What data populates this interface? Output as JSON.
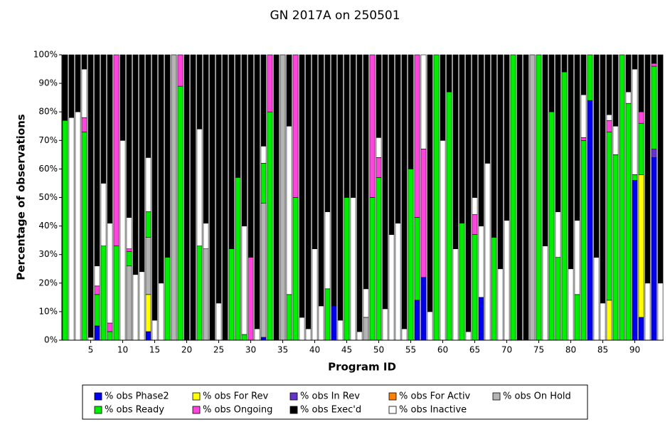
{
  "chart_data": {
    "type": "stacked_bar",
    "title": "GN 2017A on 250501",
    "x_label": "Program ID",
    "y_label": "Percentage of observations",
    "categories": [
      null,
      null,
      null,
      null,
      5,
      null,
      null,
      null,
      null,
      10,
      null,
      null,
      null,
      null,
      15,
      null,
      null,
      null,
      null,
      20,
      null,
      null,
      null,
      null,
      25,
      null,
      null,
      null,
      null,
      30,
      null,
      null,
      null,
      null,
      35,
      null,
      null,
      null,
      null,
      40,
      null,
      null,
      null,
      null,
      45,
      null,
      null,
      null,
      null,
      50,
      null,
      null,
      null,
      null,
      55,
      null,
      null,
      null,
      null,
      60,
      null,
      null,
      null,
      null,
      65,
      null,
      null,
      null,
      null,
      70,
      null,
      null,
      null,
      null,
      75,
      null,
      null,
      null,
      null,
      80,
      null,
      null,
      null,
      null,
      85,
      null,
      null,
      null,
      null,
      90,
      null,
      null,
      null,
      null
    ],
    "ylim": [
      0,
      100
    ],
    "yticks": [
      {
        "value": 0,
        "label": "0%"
      },
      {
        "value": 10,
        "label": "10%"
      },
      {
        "value": 20,
        "label": "20%"
      },
      {
        "value": 30,
        "label": "30%"
      },
      {
        "value": 40,
        "label": "40%"
      },
      {
        "value": 50,
        "label": "50%"
      },
      {
        "value": 60,
        "label": "60%"
      },
      {
        "value": 70,
        "label": "70%"
      },
      {
        "value": 80,
        "label": "80%"
      },
      {
        "value": 90,
        "label": "90%"
      },
      {
        "value": 100,
        "label": "100%"
      }
    ],
    "grid": false,
    "legend": "bottom",
    "series": [
      {
        "name": "% obs Phase2",
        "color": "#0000ee",
        "values": [
          0,
          0,
          0,
          0,
          0,
          5,
          0,
          0,
          0,
          0,
          0,
          0,
          0,
          3,
          0,
          0,
          0,
          0,
          0,
          0,
          0,
          0,
          0,
          0,
          0,
          0,
          0,
          0,
          0,
          0,
          0,
          1,
          0,
          0,
          0,
          0,
          0,
          0,
          0,
          0,
          0,
          0,
          12,
          0,
          0,
          0,
          0,
          0,
          0,
          0,
          0,
          0,
          0,
          0,
          0,
          14,
          22,
          0,
          0,
          0,
          0,
          0,
          0,
          0,
          0,
          15,
          0,
          0,
          0,
          0,
          0,
          0,
          0,
          0,
          0,
          0,
          0,
          0,
          0,
          0,
          0,
          0,
          84,
          0,
          0,
          0,
          0,
          0,
          0,
          56,
          8,
          0,
          64,
          0
        ]
      },
      {
        "name": "% obs For Rev",
        "color": "#ffff00",
        "values": [
          0,
          0,
          0,
          0,
          0,
          0,
          0,
          0,
          0,
          0,
          0,
          0,
          0,
          13,
          0,
          0,
          0,
          0,
          0,
          0,
          0,
          0,
          0,
          0,
          0,
          0,
          0,
          0,
          0,
          0,
          0,
          0,
          0,
          0,
          0,
          0,
          0,
          0,
          0,
          0,
          0,
          0,
          0,
          0,
          0,
          0,
          0,
          0,
          0,
          0,
          0,
          0,
          0,
          0,
          0,
          0,
          0,
          0,
          0,
          0,
          0,
          0,
          0,
          0,
          0,
          0,
          0,
          0,
          0,
          0,
          0,
          0,
          0,
          0,
          0,
          0,
          0,
          0,
          0,
          0,
          0,
          0,
          0,
          0,
          0,
          14,
          0,
          0,
          0,
          0,
          50,
          0,
          0,
          0
        ]
      },
      {
        "name": "% obs In Rev",
        "color": "#6633cc",
        "values": [
          0,
          0,
          0,
          0,
          0,
          0,
          0,
          0,
          0,
          0,
          0,
          0,
          0,
          0,
          0,
          0,
          0,
          0,
          0,
          0,
          0,
          0,
          0,
          0,
          0,
          0,
          0,
          0,
          0,
          0,
          0,
          0,
          0,
          0,
          0,
          0,
          0,
          0,
          0,
          0,
          0,
          0,
          0,
          0,
          0,
          0,
          0,
          0,
          0,
          0,
          0,
          0,
          0,
          0,
          0,
          0,
          0,
          0,
          0,
          0,
          0,
          0,
          0,
          0,
          0,
          0,
          0,
          0,
          0,
          0,
          0,
          0,
          0,
          0,
          0,
          0,
          0,
          0,
          0,
          0,
          0,
          0,
          0,
          0,
          0,
          0,
          0,
          0,
          0,
          0,
          0,
          0,
          3,
          0
        ]
      },
      {
        "name": "% obs For Activ",
        "color": "#ff7f00",
        "values": [
          0,
          0,
          0,
          0,
          0,
          0,
          0,
          0,
          0,
          0,
          0,
          0,
          0,
          0,
          0,
          0,
          0,
          0,
          0,
          0,
          0,
          0,
          0,
          0,
          0,
          0,
          0,
          0,
          0,
          0,
          0,
          0,
          0,
          0,
          0,
          0,
          0,
          0,
          0,
          0,
          0,
          0,
          0,
          0,
          0,
          0,
          0,
          0,
          0,
          0,
          0,
          0,
          0,
          0,
          0,
          0,
          0,
          0,
          0,
          0,
          0,
          0,
          0,
          0,
          0,
          0,
          0,
          0,
          0,
          0,
          0,
          0,
          0,
          0,
          0,
          0,
          0,
          0,
          0,
          0,
          0,
          0,
          0,
          0,
          0,
          0,
          0,
          0,
          0,
          0,
          0,
          0,
          0,
          0
        ]
      },
      {
        "name": "% obs On Hold",
        "color": "#b4b4b4",
        "values": [
          0,
          0,
          0,
          0,
          0,
          0,
          0,
          0,
          0,
          0,
          26,
          0,
          0,
          20,
          0,
          0,
          0,
          100,
          0,
          0,
          0,
          0,
          32,
          0,
          0,
          0,
          0,
          0,
          0,
          0,
          0,
          47,
          0,
          0,
          100,
          0,
          0,
          0,
          0,
          0,
          0,
          0,
          0,
          0,
          0,
          0,
          0,
          8,
          0,
          0,
          0,
          0,
          0,
          0,
          0,
          0,
          0,
          0,
          0,
          0,
          0,
          0,
          0,
          0,
          0,
          0,
          0,
          0,
          0,
          0,
          0,
          0,
          0,
          100,
          0,
          0,
          0,
          0,
          0,
          0,
          0,
          0,
          0,
          0,
          0,
          0,
          0,
          0,
          0,
          0,
          0,
          0,
          0,
          0
        ]
      },
      {
        "name": "% obs Ready",
        "color": "#00ee00",
        "values": [
          77,
          0,
          0,
          73,
          0,
          11,
          33,
          3,
          33,
          0,
          5,
          0,
          0,
          9,
          0,
          0,
          29,
          0,
          89,
          0,
          0,
          33,
          0,
          0,
          0,
          0,
          32,
          57,
          2,
          0,
          0,
          14,
          80,
          0,
          0,
          16,
          50,
          0,
          0,
          0,
          0,
          18,
          0,
          0,
          50,
          0,
          0,
          0,
          50,
          57,
          0,
          0,
          0,
          0,
          60,
          29,
          0,
          0,
          100,
          0,
          87,
          0,
          41,
          0,
          37,
          0,
          0,
          36,
          0,
          0,
          100,
          0,
          0,
          0,
          100,
          0,
          80,
          29,
          94,
          0,
          16,
          70,
          16,
          0,
          0,
          59,
          65,
          100,
          83,
          2,
          18,
          0,
          29,
          0
        ]
      },
      {
        "name": "% obs Ongoing",
        "color": "#ff44dd",
        "values": [
          0,
          0,
          0,
          5,
          0,
          3,
          0,
          3,
          67,
          0,
          1,
          0,
          0,
          0,
          0,
          0,
          0,
          0,
          11,
          0,
          0,
          0,
          0,
          0,
          0,
          0,
          0,
          0,
          0,
          29,
          0,
          0,
          20,
          0,
          0,
          0,
          50,
          0,
          0,
          0,
          0,
          0,
          0,
          0,
          0,
          0,
          0,
          0,
          50,
          7,
          0,
          0,
          0,
          0,
          0,
          57,
          45,
          0,
          0,
          0,
          0,
          0,
          0,
          0,
          7,
          0,
          0,
          0,
          0,
          0,
          0,
          0,
          0,
          0,
          0,
          0,
          0,
          0,
          0,
          0,
          0,
          1,
          0,
          0,
          0,
          4,
          0,
          0,
          0,
          0,
          4,
          0,
          1,
          0
        ]
      },
      {
        "name": "% obs Exec'd",
        "color": "#000000",
        "values": [
          23,
          22,
          20,
          5,
          99,
          74,
          45,
          59,
          0,
          30,
          57,
          77,
          76,
          36,
          93,
          80,
          71,
          0,
          0,
          100,
          100,
          26,
          59,
          100,
          87,
          100,
          68,
          43,
          60,
          71,
          96,
          32,
          0,
          100,
          0,
          25,
          0,
          92,
          96,
          68,
          88,
          55,
          88,
          93,
          50,
          50,
          97,
          82,
          0,
          29,
          89,
          63,
          59,
          96,
          40,
          0,
          0,
          90,
          0,
          30,
          13,
          68,
          59,
          97,
          50,
          60,
          38,
          64,
          75,
          58,
          0,
          100,
          100,
          0,
          0,
          67,
          20,
          55,
          6,
          75,
          58,
          14,
          0,
          71,
          87,
          21,
          25,
          0,
          13,
          5,
          20,
          80,
          3,
          80
        ]
      },
      {
        "name": "% obs Inactive",
        "color": "#ffffff",
        "values": [
          0,
          78,
          80,
          17,
          1,
          7,
          22,
          35,
          0,
          70,
          11,
          23,
          24,
          19,
          7,
          20,
          0,
          0,
          0,
          0,
          0,
          41,
          9,
          0,
          13,
          0,
          0,
          0,
          38,
          0,
          4,
          6,
          0,
          0,
          0,
          59,
          0,
          8,
          4,
          32,
          12,
          27,
          0,
          7,
          0,
          50,
          3,
          10,
          0,
          7,
          11,
          37,
          41,
          4,
          0,
          0,
          33,
          10,
          0,
          70,
          0,
          32,
          0,
          3,
          6,
          25,
          62,
          0,
          25,
          42,
          0,
          0,
          0,
          0,
          0,
          33,
          0,
          16,
          0,
          25,
          26,
          15,
          0,
          29,
          13,
          2,
          10,
          0,
          4,
          37,
          0,
          20,
          0,
          20
        ]
      }
    ]
  }
}
